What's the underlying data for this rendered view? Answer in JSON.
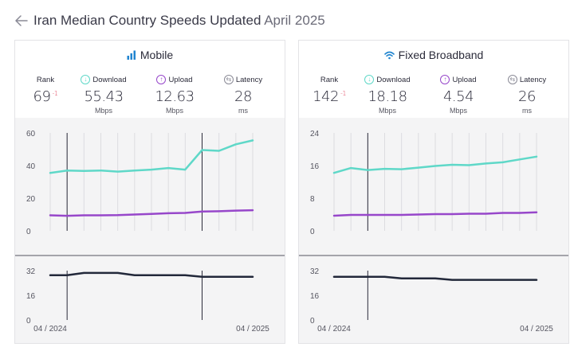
{
  "page": {
    "title_prefix": "Iran Median Country Speeds Updated",
    "title_date": "April 2025"
  },
  "icons": {
    "back": "arrow-left-icon",
    "mobile": "signal-bars-icon",
    "broadband": "wifi-icon",
    "download": "arrow-down-circle-icon",
    "upload": "arrow-up-circle-icon",
    "latency": "arrows-exchange-circle-icon"
  },
  "colors": {
    "download": "#5fd8c8",
    "upload": "#9747ca",
    "latency": "#22283a",
    "accent": "#2185d0",
    "delta": "#e0405a"
  },
  "labels": {
    "rank": "Rank",
    "download": "Download",
    "upload": "Upload",
    "latency": "Latency"
  },
  "cards": [
    {
      "title": "Mobile",
      "rank": "69",
      "rank_delta": "-1",
      "download": "55.43",
      "download_unit": "Mbps",
      "upload": "12.63",
      "upload_unit": "Mbps",
      "latency": "28",
      "latency_unit": "ms"
    },
    {
      "title": "Fixed Broadband",
      "rank": "142",
      "rank_delta": "-1",
      "download": "18.18",
      "download_unit": "Mbps",
      "upload": "4.54",
      "upload_unit": "Mbps",
      "latency": "26",
      "latency_unit": "ms"
    }
  ],
  "chart_data": [
    {
      "type": "line",
      "title": "Mobile",
      "x": [
        "04 / 2024",
        "05 / 2024",
        "06 / 2024",
        "07 / 2024",
        "08 / 2024",
        "09 / 2024",
        "10 / 2024",
        "11 / 2024",
        "12 / 2024",
        "01 / 2025",
        "02 / 2025",
        "03 / 2025",
        "04 / 2025"
      ],
      "x_tick_labels": [
        "04 / 2024",
        "04 / 2025"
      ],
      "speed": {
        "ylim": [
          0,
          60
        ],
        "yticks": [
          0,
          20,
          40,
          60
        ],
        "series": [
          {
            "key": "download",
            "values": [
              35.5,
              37,
              36.7,
              37,
              36.3,
              37,
              37.5,
              38.5,
              37.5,
              49.5,
              49,
              53,
              55.43
            ]
          },
          {
            "key": "upload",
            "values": [
              9.5,
              9.2,
              9.5,
              9.5,
              9.6,
              10,
              10.4,
              10.8,
              11,
              11.8,
              12,
              12.4,
              12.63
            ]
          }
        ],
        "markers": [
          "05 / 2024",
          "01 / 2025"
        ]
      },
      "latency": {
        "ylim": [
          0,
          32
        ],
        "yticks": [
          0,
          16,
          32
        ],
        "series": [
          {
            "key": "latency",
            "values": [
              29,
              29,
              30.5,
              30.5,
              30.5,
              29,
              29,
              29,
              29,
              28,
              28,
              28,
              28
            ]
          }
        ],
        "markers": [
          "05 / 2024",
          "01 / 2025"
        ]
      },
      "grid": true
    },
    {
      "type": "line",
      "title": "Fixed Broadband",
      "x": [
        "04 / 2024",
        "05 / 2024",
        "06 / 2024",
        "07 / 2024",
        "08 / 2024",
        "09 / 2024",
        "10 / 2024",
        "11 / 2024",
        "12 / 2024",
        "01 / 2025",
        "02 / 2025",
        "03 / 2025",
        "04 / 2025"
      ],
      "x_tick_labels": [
        "04 / 2024",
        "04 / 2025"
      ],
      "speed": {
        "ylim": [
          0,
          24
        ],
        "yticks": [
          0,
          8,
          16,
          24
        ],
        "series": [
          {
            "key": "download",
            "values": [
              14.2,
              15.4,
              14.9,
              15.2,
              15.1,
              15.5,
              15.9,
              16.2,
              16.1,
              16.5,
              16.8,
              17.5,
              18.18
            ]
          },
          {
            "key": "upload",
            "values": [
              3.7,
              3.9,
              3.9,
              3.9,
              3.9,
              4.0,
              4.1,
              4.1,
              4.2,
              4.2,
              4.4,
              4.4,
              4.54
            ]
          }
        ],
        "markers": [
          "06 / 2024"
        ]
      },
      "latency": {
        "ylim": [
          0,
          32
        ],
        "yticks": [
          0,
          16,
          32
        ],
        "series": [
          {
            "key": "latency",
            "values": [
              28,
              28,
              28,
              28,
              27,
              27,
              27,
              26,
              26,
              26,
              26,
              26,
              26
            ]
          }
        ],
        "markers": [
          "06 / 2024"
        ]
      },
      "grid": true
    }
  ]
}
